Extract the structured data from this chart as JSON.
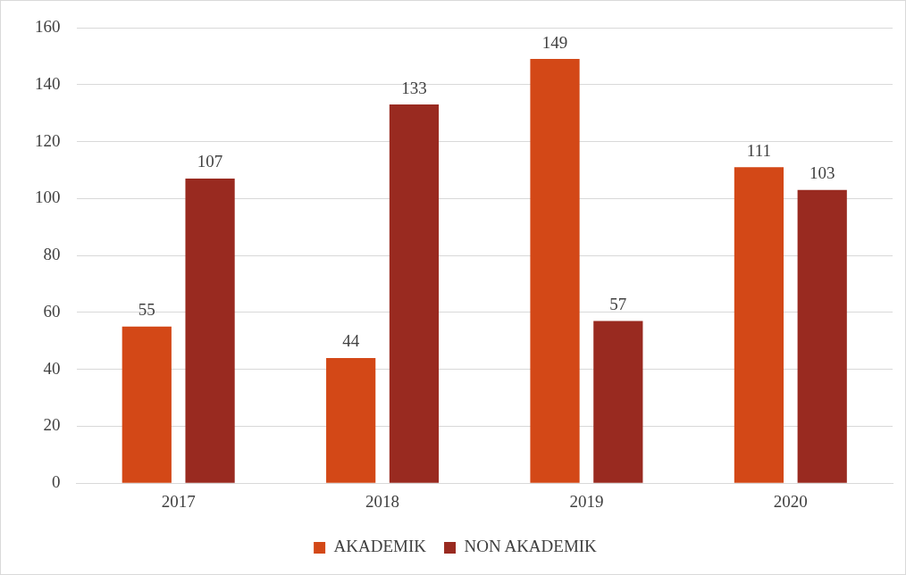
{
  "chart_data": {
    "type": "bar",
    "categories": [
      "2017",
      "2018",
      "2019",
      "2020"
    ],
    "series": [
      {
        "name": "AKADEMIK",
        "color": "#d34817",
        "values": [
          55,
          44,
          149,
          111
        ]
      },
      {
        "name": "NON AKADEMIK",
        "color": "#992a20",
        "values": [
          107,
          133,
          57,
          103
        ]
      }
    ],
    "ylim": [
      0,
      160
    ],
    "yticks": [
      0,
      20,
      40,
      60,
      80,
      100,
      120,
      140,
      160
    ],
    "grid": "y",
    "legend": "bottom",
    "data_labels": true
  }
}
